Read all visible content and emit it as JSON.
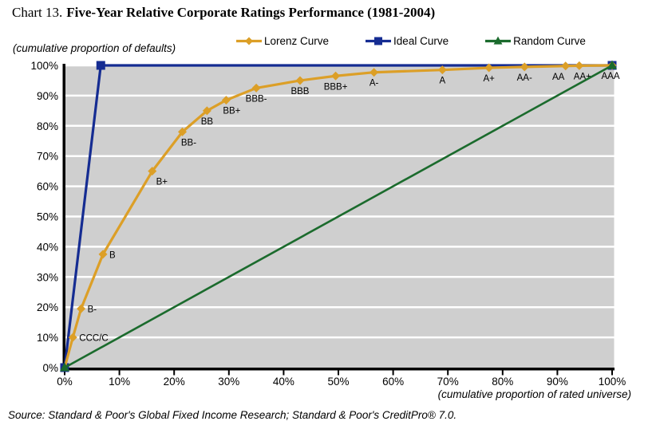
{
  "title": {
    "prefix": "Chart 13.",
    "main": "Five-Year Relative Corporate Ratings Performance (1981-2004)"
  },
  "source": "Source: Standard & Poor's Global Fixed Income Research; Standard & Poor's CreditPro® 7.0.",
  "legend": [
    {
      "label": "Lorenz Curve",
      "marker": "diamond"
    },
    {
      "label": "Ideal Curve",
      "marker": "square"
    },
    {
      "label": "Random Curve",
      "marker": "triangle"
    }
  ],
  "colors": {
    "lorenz": "#DC9F27",
    "ideal": "#152C92",
    "random": "#1B6B2D",
    "plot_bg": "#CFCFCF",
    "gridline": "#FFFFFF",
    "axis": "#000000"
  },
  "chart_data": {
    "type": "line",
    "title": "Five-Year Relative Corporate Ratings Performance (1981-2004)",
    "xlabel": "(cumulative proportion of rated universe)",
    "ylabel": "(cumulative proportion of defaults)",
    "xlim": [
      0,
      100
    ],
    "ylim": [
      0,
      100
    ],
    "x_tick_labels": [
      "0%",
      "10%",
      "20%",
      "30%",
      "40%",
      "50%",
      "60%",
      "70%",
      "80%",
      "90%",
      "100%"
    ],
    "y_tick_labels": [
      "0%",
      "10%",
      "20%",
      "30%",
      "40%",
      "50%",
      "60%",
      "70%",
      "80%",
      "90%",
      "100%"
    ],
    "x_tick_values": [
      0,
      10,
      20,
      30,
      40,
      50,
      60,
      70,
      80,
      90,
      100
    ],
    "y_tick_values": [
      0,
      10,
      20,
      30,
      40,
      50,
      60,
      70,
      80,
      90,
      100
    ],
    "grid": "horizontal white gridlines on gray plot background",
    "legend_position": "top-center",
    "series": [
      {
        "name": "Lorenz Curve",
        "color": "#DC9F27",
        "marker": "diamond",
        "points": [
          {
            "x": 0,
            "y": 0,
            "marker": false
          },
          {
            "x": 1.5,
            "y": 10,
            "label": "CCC/C",
            "label_pos": "right"
          },
          {
            "x": 3,
            "y": 19.5,
            "label": "B-",
            "label_pos": "right"
          },
          {
            "x": 7,
            "y": 37.5,
            "label": "B",
            "label_pos": "right"
          },
          {
            "x": 16,
            "y": 65,
            "label": "B+",
            "label_pos": "below",
            "ldx": 12
          },
          {
            "x": 21.5,
            "y": 78,
            "label": "BB-",
            "label_pos": "below",
            "ldx": 8
          },
          {
            "x": 26,
            "y": 85,
            "label": "BB",
            "label_pos": "below"
          },
          {
            "x": 29.5,
            "y": 88.5,
            "label": "BB+",
            "label_pos": "below",
            "ldx": 7
          },
          {
            "x": 35,
            "y": 92.5,
            "label": "BBB-",
            "label_pos": "below"
          },
          {
            "x": 43,
            "y": 95,
            "label": "BBB",
            "label_pos": "below"
          },
          {
            "x": 49.5,
            "y": 96.5,
            "label": "BBB+",
            "label_pos": "below"
          },
          {
            "x": 56.5,
            "y": 97.7,
            "label": "A-",
            "label_pos": "below"
          },
          {
            "x": 69,
            "y": 98.5,
            "label": "A",
            "label_pos": "below"
          },
          {
            "x": 77.5,
            "y": 99.2,
            "label": "A+",
            "label_pos": "below"
          },
          {
            "x": 84,
            "y": 99.5,
            "label": "AA-",
            "label_pos": "below"
          },
          {
            "x": 91.5,
            "y": 99.8,
            "label": "AA",
            "label_pos": "below",
            "ldx": -9
          },
          {
            "x": 94,
            "y": 99.9,
            "label": "AA+",
            "label_pos": "below",
            "ldx": 4
          },
          {
            "x": 100,
            "y": 100,
            "label": "AAA",
            "label_pos": "below",
            "ldx": -2
          }
        ]
      },
      {
        "name": "Ideal Curve",
        "color": "#152C92",
        "marker": "square",
        "points": [
          {
            "x": 0,
            "y": 0
          },
          {
            "x": 6.6,
            "y": 100
          },
          {
            "x": 100,
            "y": 100
          }
        ]
      },
      {
        "name": "Random Curve",
        "color": "#1B6B2D",
        "marker": "triangle",
        "points": [
          {
            "x": 0,
            "y": 0
          },
          {
            "x": 100,
            "y": 100
          }
        ]
      }
    ]
  }
}
